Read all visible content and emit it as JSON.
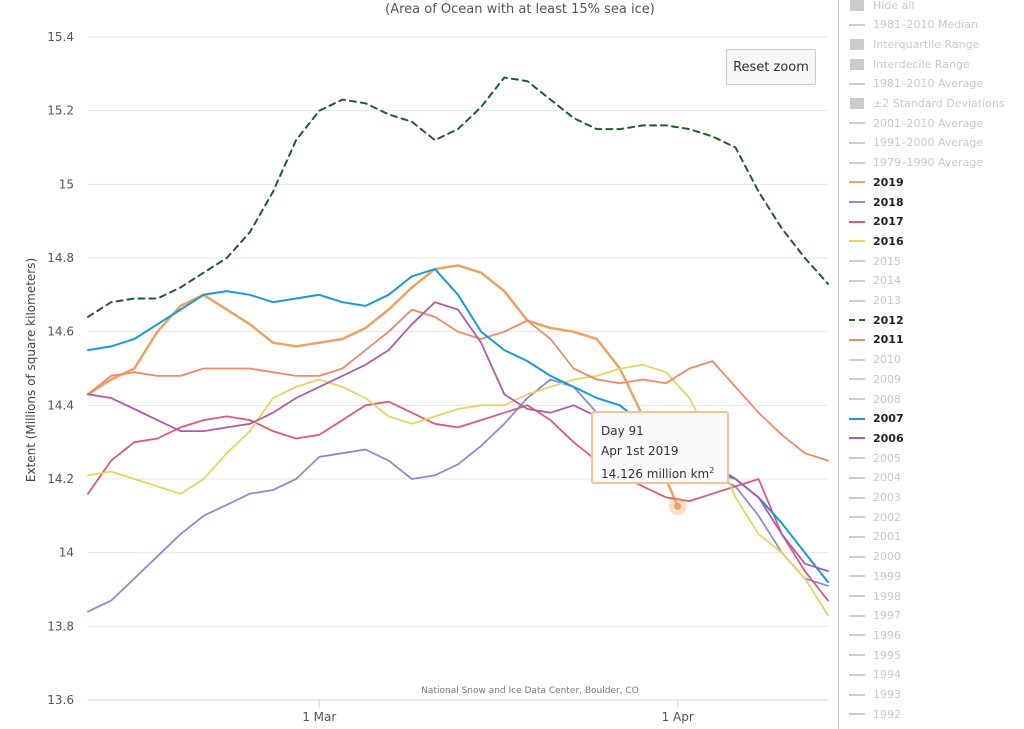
{
  "subtitle": "(Area of Ocean with at least 15% sea ice)",
  "credits": "National Snow and Ice Data Center, Boulder, CO",
  "reset_zoom_label": "Reset zoom",
  "tooltip": {
    "line1": "Day 91",
    "line2": "Apr 1st 2019",
    "value": "14.126 million km",
    "unit_sup": "2"
  },
  "legend": [
    {
      "label": "Hide all",
      "kind": "box",
      "active": false
    },
    {
      "label": "1981–2010 Median",
      "kind": "line",
      "active": false
    },
    {
      "label": "Interquartile Range",
      "kind": "box",
      "active": false
    },
    {
      "label": "Interdecile Range",
      "kind": "box",
      "active": false
    },
    {
      "label": "1981–2010 Average",
      "kind": "line",
      "active": false
    },
    {
      "label": "±2 Standard Deviations",
      "kind": "box",
      "active": false
    },
    {
      "label": "2001–2010 Average",
      "kind": "line",
      "active": false
    },
    {
      "label": "1991–2000 Average",
      "kind": "line",
      "active": false
    },
    {
      "label": "1979–1990 Average",
      "kind": "line",
      "active": false
    },
    {
      "label": "2019",
      "kind": "line",
      "active": true,
      "color": "#f0a160"
    },
    {
      "label": "2018",
      "kind": "line",
      "active": true,
      "color": "#8c8cd6"
    },
    {
      "label": "2017",
      "kind": "line",
      "active": true,
      "color": "#e0587a"
    },
    {
      "label": "2016",
      "kind": "line",
      "active": true,
      "color": "#e8d460"
    },
    {
      "label": "2015",
      "kind": "line",
      "active": false
    },
    {
      "label": "2014",
      "kind": "line",
      "active": false
    },
    {
      "label": "2013",
      "kind": "line",
      "active": false
    },
    {
      "label": "2012",
      "kind": "dash",
      "active": true,
      "color": "#1f5e2a"
    },
    {
      "label": "2011",
      "kind": "line",
      "active": true,
      "color": "#ef8a65"
    },
    {
      "label": "2010",
      "kind": "line",
      "active": false
    },
    {
      "label": "2009",
      "kind": "line",
      "active": false
    },
    {
      "label": "2008",
      "kind": "line",
      "active": false
    },
    {
      "label": "2007",
      "kind": "line",
      "active": true,
      "color": "#1a9ad6"
    },
    {
      "label": "2006",
      "kind": "line",
      "active": true,
      "color": "#b05ba8"
    },
    {
      "label": "2005",
      "kind": "line",
      "active": false
    },
    {
      "label": "2004",
      "kind": "line",
      "active": false
    },
    {
      "label": "2003",
      "kind": "line",
      "active": false
    },
    {
      "label": "2002",
      "kind": "line",
      "active": false
    },
    {
      "label": "2001",
      "kind": "line",
      "active": false
    },
    {
      "label": "2000",
      "kind": "line",
      "active": false
    },
    {
      "label": "1999",
      "kind": "line",
      "active": false
    },
    {
      "label": "1998",
      "kind": "line",
      "active": false
    },
    {
      "label": "1997",
      "kind": "line",
      "active": false
    },
    {
      "label": "1996",
      "kind": "line",
      "active": false
    },
    {
      "label": "1995",
      "kind": "line",
      "active": false
    },
    {
      "label": "1994",
      "kind": "line",
      "active": false
    },
    {
      "label": "1993",
      "kind": "line",
      "active": false
    },
    {
      "label": "1992",
      "kind": "line",
      "active": false
    }
  ],
  "chart_data": {
    "type": "line",
    "title": "",
    "subtitle": "(Area of Ocean with at least 15% sea ice)",
    "ylabel": "Extent (Millions of square kilometers)",
    "xlabel": "",
    "ylim": [
      13.6,
      15.4
    ],
    "yticks": [
      13.6,
      13.8,
      14,
      14.2,
      14.4,
      14.6,
      14.8,
      15,
      15.2,
      15.4
    ],
    "ytick_labels": [
      "13.6",
      "13.8",
      "14",
      "14.2",
      "14.4",
      "14.6",
      "14.8",
      "15",
      "15.2",
      "15.4"
    ],
    "x_unit": "day of year",
    "xlim": [
      40,
      104
    ],
    "xticks": [
      60,
      91
    ],
    "xtick_labels": [
      "1 Mar",
      "1 Apr"
    ],
    "grid": "horizontal",
    "legend_position": "right",
    "series": [
      {
        "name": "2019",
        "color": "#f0a160",
        "dash": false,
        "width": 2.5,
        "x": [
          40,
          42,
          44,
          46,
          48,
          50,
          52,
          54,
          56,
          58,
          60,
          62,
          64,
          66,
          68,
          70,
          72,
          74,
          76,
          78,
          80,
          82,
          84,
          86,
          88,
          90,
          91
        ],
        "y": [
          14.43,
          14.47,
          14.5,
          14.6,
          14.67,
          14.7,
          14.66,
          14.62,
          14.57,
          14.56,
          14.57,
          14.58,
          14.61,
          14.66,
          14.72,
          14.77,
          14.78,
          14.76,
          14.71,
          14.63,
          14.61,
          14.6,
          14.58,
          14.5,
          14.37,
          14.2,
          14.126
        ]
      },
      {
        "name": "2018",
        "color": "#8c8cd6",
        "dash": false,
        "width": 1.8,
        "x": [
          40,
          42,
          44,
          46,
          48,
          50,
          52,
          54,
          56,
          58,
          60,
          62,
          64,
          66,
          68,
          70,
          72,
          74,
          76,
          78,
          80,
          82,
          84,
          86,
          88,
          90,
          92,
          94,
          96,
          98,
          100,
          102,
          104
        ],
        "y": [
          13.84,
          13.87,
          13.93,
          13.99,
          14.05,
          14.1,
          14.13,
          14.16,
          14.17,
          14.2,
          14.26,
          14.27,
          14.28,
          14.25,
          14.2,
          14.21,
          14.24,
          14.29,
          14.35,
          14.42,
          14.47,
          14.45,
          14.38,
          14.3,
          14.27,
          14.25,
          14.23,
          14.21,
          14.18,
          14.1,
          14.0,
          13.93,
          13.91
        ]
      },
      {
        "name": "2017",
        "color": "#e0587a",
        "dash": false,
        "width": 1.8,
        "x": [
          40,
          42,
          44,
          46,
          48,
          50,
          52,
          54,
          56,
          58,
          60,
          62,
          64,
          66,
          68,
          70,
          72,
          74,
          76,
          78,
          80,
          82,
          84,
          86,
          88,
          90,
          92,
          94,
          96,
          98,
          100,
          102,
          104
        ],
        "y": [
          14.16,
          14.25,
          14.3,
          14.31,
          14.34,
          14.36,
          14.37,
          14.36,
          14.33,
          14.31,
          14.32,
          14.36,
          14.4,
          14.41,
          14.38,
          14.35,
          14.34,
          14.36,
          14.38,
          14.4,
          14.36,
          14.3,
          14.25,
          14.21,
          14.18,
          14.15,
          14.14,
          14.16,
          14.18,
          14.2,
          14.05,
          13.95,
          13.87
        ]
      },
      {
        "name": "2016",
        "color": "#e8d460",
        "dash": false,
        "width": 1.8,
        "x": [
          40,
          42,
          44,
          46,
          48,
          50,
          52,
          54,
          56,
          58,
          60,
          62,
          64,
          66,
          68,
          70,
          72,
          74,
          76,
          78,
          80,
          82,
          84,
          86,
          88,
          90,
          92,
          94,
          96,
          98,
          100,
          102,
          104
        ],
        "y": [
          14.21,
          14.22,
          14.2,
          14.18,
          14.16,
          14.2,
          14.27,
          14.33,
          14.42,
          14.45,
          14.47,
          14.45,
          14.42,
          14.37,
          14.35,
          14.37,
          14.39,
          14.4,
          14.4,
          14.43,
          14.45,
          14.47,
          14.48,
          14.5,
          14.51,
          14.49,
          14.42,
          14.3,
          14.15,
          14.05,
          14.0,
          13.93,
          13.83
        ]
      },
      {
        "name": "2012",
        "color": "#1f5e2a",
        "dash": true,
        "width": 2,
        "x": [
          40,
          42,
          44,
          46,
          48,
          50,
          52,
          54,
          56,
          58,
          60,
          62,
          64,
          66,
          68,
          70,
          72,
          74,
          76,
          78,
          80,
          82,
          84,
          86,
          88,
          90,
          92,
          94,
          96,
          98,
          100,
          102,
          104
        ],
        "y": [
          14.64,
          14.68,
          14.69,
          14.69,
          14.72,
          14.76,
          14.8,
          14.87,
          14.98,
          15.12,
          15.2,
          15.23,
          15.22,
          15.19,
          15.17,
          15.12,
          15.15,
          15.21,
          15.29,
          15.28,
          15.23,
          15.18,
          15.15,
          15.15,
          15.16,
          15.16,
          15.15,
          15.13,
          15.1,
          14.98,
          14.88,
          14.8,
          14.73
        ]
      },
      {
        "name": "2011",
        "color": "#ef8a65",
        "dash": false,
        "width": 1.8,
        "x": [
          40,
          42,
          44,
          46,
          48,
          50,
          52,
          54,
          56,
          58,
          60,
          62,
          64,
          66,
          68,
          70,
          72,
          74,
          76,
          78,
          80,
          82,
          84,
          86,
          88,
          90,
          92,
          94,
          96,
          98,
          100,
          102,
          104
        ],
        "y": [
          14.43,
          14.48,
          14.49,
          14.48,
          14.48,
          14.5,
          14.5,
          14.5,
          14.49,
          14.48,
          14.48,
          14.5,
          14.55,
          14.6,
          14.66,
          14.64,
          14.6,
          14.58,
          14.6,
          14.63,
          14.58,
          14.5,
          14.47,
          14.46,
          14.47,
          14.46,
          14.5,
          14.52,
          14.45,
          14.38,
          14.32,
          14.27,
          14.25
        ]
      },
      {
        "name": "2007",
        "color": "#1a9ad6",
        "dash": false,
        "width": 2,
        "x": [
          40,
          42,
          44,
          46,
          48,
          50,
          52,
          54,
          56,
          58,
          60,
          62,
          64,
          66,
          68,
          70,
          72,
          74,
          76,
          78,
          80,
          82,
          84,
          86,
          88,
          90,
          92,
          94,
          96,
          98,
          100,
          102,
          104
        ],
        "y": [
          14.55,
          14.56,
          14.58,
          14.62,
          14.66,
          14.7,
          14.71,
          14.7,
          14.68,
          14.69,
          14.7,
          14.68,
          14.67,
          14.7,
          14.75,
          14.77,
          14.7,
          14.6,
          14.55,
          14.52,
          14.48,
          14.45,
          14.42,
          14.4,
          14.35,
          14.32,
          14.28,
          14.24,
          14.2,
          14.15,
          14.08,
          14.0,
          13.92
        ]
      },
      {
        "name": "2006",
        "color": "#b05ba8",
        "dash": false,
        "width": 1.8,
        "x": [
          40,
          42,
          44,
          46,
          48,
          50,
          52,
          54,
          56,
          58,
          60,
          62,
          64,
          66,
          68,
          70,
          72,
          74,
          76,
          78,
          80,
          82,
          84,
          86,
          88,
          90,
          92,
          94,
          96,
          98,
          100,
          102,
          104
        ],
        "y": [
          14.43,
          14.42,
          14.39,
          14.36,
          14.33,
          14.33,
          14.34,
          14.35,
          14.38,
          14.42,
          14.45,
          14.48,
          14.51,
          14.55,
          14.62,
          14.68,
          14.66,
          14.57,
          14.43,
          14.39,
          14.38,
          14.4,
          14.37,
          14.3,
          14.25,
          14.22,
          14.23,
          14.22,
          14.2,
          14.15,
          14.05,
          13.97,
          13.95
        ]
      }
    ],
    "highlight_point": {
      "series": "2019",
      "x": 91,
      "y": 14.126,
      "color": "#f0a160"
    }
  }
}
